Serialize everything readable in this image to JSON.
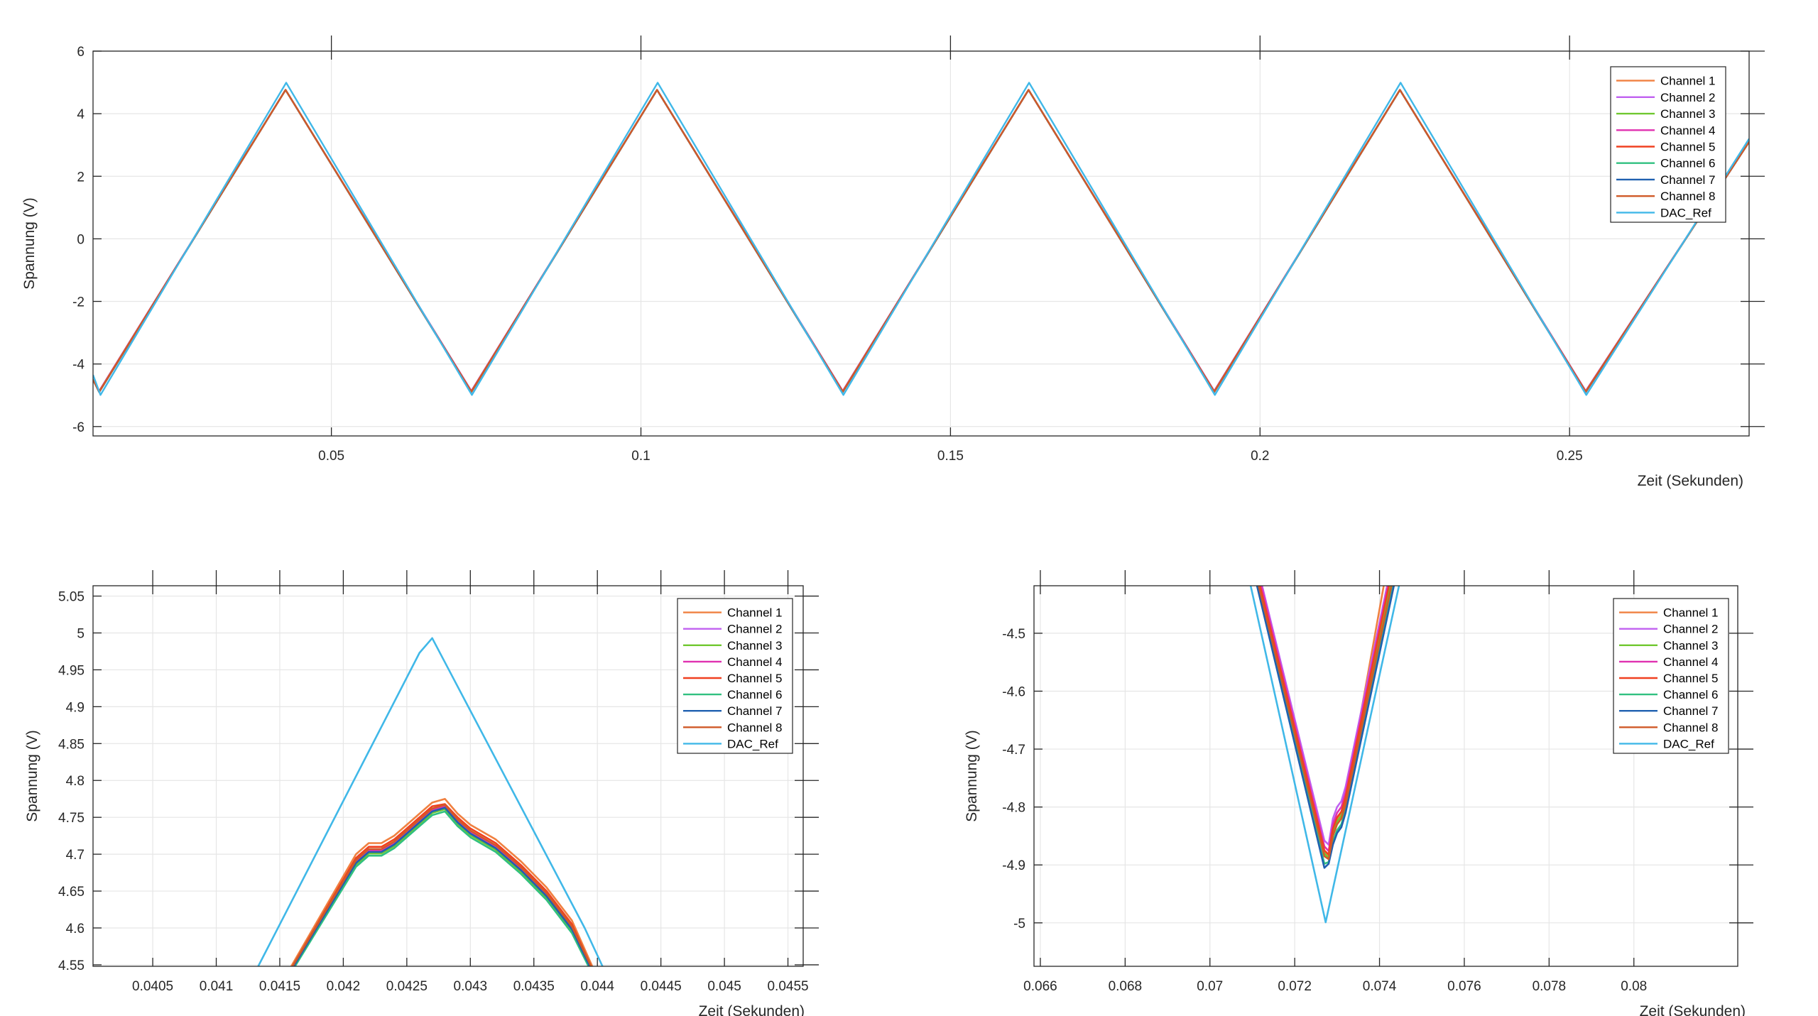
{
  "chart_data": [
    {
      "type": "line",
      "xlabel": "Zeit (Sekunden)",
      "ylabel": "Spannung (V)",
      "xlim": [
        0.0115,
        0.279
      ],
      "ylim": [
        -6.3,
        6.0
      ],
      "xticks": [
        0.05,
        0.1,
        0.15,
        0.2,
        0.25
      ],
      "xtick_labels": [
        "0.05",
        "0.1",
        "0.15",
        "0.2",
        "0.25"
      ],
      "yticks": [
        6,
        4,
        2,
        0,
        -2,
        -4,
        -6
      ],
      "ytick_labels": [
        "6",
        "4",
        "2",
        "0",
        "-2",
        "-4",
        "-6"
      ],
      "grid": true,
      "legend_position": "top-right",
      "series": [
        {
          "name": "Channel 1",
          "color": "#F08040",
          "x": [
            0.0115,
            0.0125,
            0.0426,
            0.0726,
            0.1026,
            0.1326,
            0.1626,
            0.1926,
            0.2226,
            0.2526,
            0.279
          ],
          "y": [
            -4.5,
            -4.89,
            4.76,
            -4.89,
            4.76,
            -4.89,
            4.76,
            -4.89,
            4.76,
            -4.89,
            3.1
          ]
        },
        {
          "name": "Channel 2",
          "color": "#C060F0",
          "x": [
            0.0115,
            0.0125,
            0.0426,
            0.0726,
            0.1026,
            0.1326,
            0.1626,
            0.1926,
            0.2226,
            0.2526,
            0.279
          ],
          "y": [
            -4.5,
            -4.86,
            4.76,
            -4.86,
            4.76,
            -4.86,
            4.76,
            -4.86,
            4.76,
            -4.86,
            3.1
          ]
        },
        {
          "name": "Channel 3",
          "color": "#70C830",
          "x": [
            0.0115,
            0.0125,
            0.0426,
            0.0726,
            0.1026,
            0.1326,
            0.1626,
            0.1926,
            0.2226,
            0.2526,
            0.279
          ],
          "y": [
            -4.5,
            -4.88,
            4.76,
            -4.88,
            4.76,
            -4.88,
            4.76,
            -4.88,
            4.76,
            -4.88,
            3.1
          ]
        },
        {
          "name": "Channel 4",
          "color": "#E030B0",
          "x": [
            0.0115,
            0.0125,
            0.0426,
            0.0726,
            0.1026,
            0.1326,
            0.1626,
            0.1926,
            0.2226,
            0.2526,
            0.279
          ],
          "y": [
            -4.5,
            -4.88,
            4.76,
            -4.88,
            4.76,
            -4.88,
            4.76,
            -4.88,
            4.76,
            -4.88,
            3.1
          ]
        },
        {
          "name": "Channel 5",
          "color": "#F04020",
          "x": [
            0.0115,
            0.0125,
            0.0426,
            0.0726,
            0.1026,
            0.1326,
            0.1626,
            0.1926,
            0.2226,
            0.2526,
            0.279
          ],
          "y": [
            -4.5,
            -4.88,
            4.76,
            -4.88,
            4.76,
            -4.88,
            4.76,
            -4.88,
            4.76,
            -4.88,
            3.1
          ]
        },
        {
          "name": "Channel 6",
          "color": "#30C080",
          "x": [
            0.0115,
            0.0125,
            0.0426,
            0.0726,
            0.1026,
            0.1326,
            0.1626,
            0.1926,
            0.2226,
            0.2526,
            0.279
          ],
          "y": [
            -4.5,
            -4.9,
            4.76,
            -4.9,
            4.76,
            -4.9,
            4.76,
            -4.9,
            4.76,
            -4.9,
            3.1
          ]
        },
        {
          "name": "Channel 7",
          "color": "#1F60B0",
          "x": [
            0.0115,
            0.0125,
            0.0426,
            0.0726,
            0.1026,
            0.1326,
            0.1626,
            0.1926,
            0.2226,
            0.2526,
            0.279
          ],
          "y": [
            -4.5,
            -4.9,
            4.76,
            -4.9,
            4.76,
            -4.9,
            4.76,
            -4.9,
            4.76,
            -4.9,
            3.1
          ]
        },
        {
          "name": "Channel 8",
          "color": "#D05A28",
          "x": [
            0.0115,
            0.0125,
            0.0426,
            0.0726,
            0.1026,
            0.1326,
            0.1626,
            0.1926,
            0.2226,
            0.2526,
            0.279
          ],
          "y": [
            -4.5,
            -4.89,
            4.76,
            -4.89,
            4.76,
            -4.89,
            4.76,
            -4.89,
            4.76,
            -4.89,
            3.1
          ]
        },
        {
          "name": "DAC_Ref",
          "color": "#40B8E8",
          "x": [
            0.0115,
            0.0127,
            0.0427,
            0.0727,
            0.1027,
            0.1327,
            0.1627,
            0.1927,
            0.2227,
            0.2527,
            0.279
          ],
          "y": [
            -4.35,
            -4.99,
            4.99,
            -4.99,
            4.99,
            -4.99,
            4.99,
            -4.99,
            4.99,
            -4.99,
            3.2
          ]
        }
      ]
    },
    {
      "type": "line",
      "xlabel": "Zeit (Sekunden)",
      "ylabel": "Spannung (V)",
      "xlim": [
        0.04003,
        0.04562
      ],
      "ylim": [
        4.548,
        5.064
      ],
      "xticks": [
        0.0405,
        0.041,
        0.0415,
        0.042,
        0.0425,
        0.043,
        0.0435,
        0.044,
        0.0445,
        0.045,
        0.0455
      ],
      "xtick_labels": [
        "0.0405",
        "0.041",
        "0.0415",
        "0.042",
        "0.0425",
        "0.043",
        "0.0435",
        "0.044",
        "0.0445",
        "0.045",
        "0.0455"
      ],
      "yticks": [
        5.05,
        5,
        4.95,
        4.9,
        4.85,
        4.8,
        4.75,
        4.7,
        4.65,
        4.6,
        4.55
      ],
      "ytick_labels": [
        "5.05",
        "5",
        "4.95",
        "4.9",
        "4.85",
        "4.8",
        "4.75",
        "4.7",
        "4.65",
        "4.6",
        "4.55"
      ],
      "grid": true,
      "legend_position": "top-right",
      "series": [
        {
          "name": "Channel 1",
          "color": "#F08040",
          "x": [
            0.04159,
            0.0421,
            0.0422,
            0.0423,
            0.0424,
            0.0425,
            0.0426,
            0.0427,
            0.0428,
            0.0429,
            0.043,
            0.0432,
            0.0434,
            0.0436,
            0.0438,
            0.04396
          ],
          "y": [
            4.548,
            4.7,
            4.715,
            4.715,
            4.725,
            4.74,
            4.755,
            4.77,
            4.775,
            4.755,
            4.74,
            4.72,
            4.69,
            4.655,
            4.61,
            4.548
          ]
        },
        {
          "name": "Channel 2",
          "color": "#C060F0",
          "x": [
            0.04161,
            0.0421,
            0.0422,
            0.0423,
            0.0424,
            0.0425,
            0.0426,
            0.0427,
            0.0428,
            0.0429,
            0.043,
            0.0432,
            0.0434,
            0.0436,
            0.0438,
            0.04394
          ],
          "y": [
            4.548,
            4.69,
            4.705,
            4.705,
            4.715,
            4.73,
            4.745,
            4.76,
            4.765,
            4.745,
            4.73,
            4.71,
            4.68,
            4.645,
            4.6,
            4.548
          ]
        },
        {
          "name": "Channel 3",
          "color": "#70C830",
          "x": [
            0.04161,
            0.0421,
            0.0422,
            0.0423,
            0.0424,
            0.0425,
            0.0426,
            0.0427,
            0.0428,
            0.0429,
            0.043,
            0.0432,
            0.0434,
            0.0436,
            0.0438,
            0.04394
          ],
          "y": [
            4.548,
            4.686,
            4.701,
            4.701,
            4.711,
            4.726,
            4.741,
            4.756,
            4.761,
            4.741,
            4.726,
            4.706,
            4.676,
            4.641,
            4.596,
            4.548
          ]
        },
        {
          "name": "Channel 4",
          "color": "#E030B0",
          "x": [
            0.04161,
            0.0421,
            0.0422,
            0.0423,
            0.0424,
            0.0425,
            0.0426,
            0.0427,
            0.0428,
            0.0429,
            0.043,
            0.0432,
            0.0434,
            0.0436,
            0.0438,
            0.04394
          ],
          "y": [
            4.548,
            4.69,
            4.705,
            4.705,
            4.715,
            4.73,
            4.745,
            4.76,
            4.765,
            4.745,
            4.73,
            4.71,
            4.68,
            4.645,
            4.6,
            4.548
          ]
        },
        {
          "name": "Channel 5",
          "color": "#F04020",
          "x": [
            0.0416,
            0.0421,
            0.0422,
            0.0423,
            0.0424,
            0.0425,
            0.0426,
            0.0427,
            0.0428,
            0.0429,
            0.043,
            0.0432,
            0.0434,
            0.0436,
            0.0438,
            0.04395
          ],
          "y": [
            4.548,
            4.695,
            4.71,
            4.71,
            4.72,
            4.735,
            4.75,
            4.765,
            4.768,
            4.75,
            4.735,
            4.715,
            4.685,
            4.65,
            4.605,
            4.548
          ]
        },
        {
          "name": "Channel 6",
          "color": "#30C080",
          "x": [
            0.04162,
            0.0421,
            0.0422,
            0.0423,
            0.0424,
            0.0425,
            0.0426,
            0.0427,
            0.0428,
            0.0429,
            0.043,
            0.0432,
            0.0434,
            0.0436,
            0.0438,
            0.04393
          ],
          "y": [
            4.548,
            4.683,
            4.698,
            4.698,
            4.708,
            4.723,
            4.738,
            4.753,
            4.758,
            4.738,
            4.723,
            4.703,
            4.673,
            4.638,
            4.593,
            4.548
          ]
        },
        {
          "name": "Channel 7",
          "color": "#1F60B0",
          "x": [
            0.04161,
            0.0421,
            0.0422,
            0.0423,
            0.0424,
            0.0425,
            0.0426,
            0.0427,
            0.0428,
            0.0429,
            0.043,
            0.0432,
            0.0434,
            0.0436,
            0.0438,
            0.04394
          ],
          "y": [
            4.548,
            4.688,
            4.703,
            4.703,
            4.713,
            4.728,
            4.743,
            4.758,
            4.763,
            4.743,
            4.728,
            4.708,
            4.678,
            4.643,
            4.598,
            4.548
          ]
        },
        {
          "name": "Channel 8",
          "color": "#D05A28",
          "x": [
            0.0416,
            0.0421,
            0.0422,
            0.0423,
            0.0424,
            0.0425,
            0.0426,
            0.0427,
            0.0428,
            0.0429,
            0.043,
            0.0432,
            0.0434,
            0.0436,
            0.0438,
            0.04395
          ],
          "y": [
            4.548,
            4.692,
            4.707,
            4.707,
            4.717,
            4.732,
            4.747,
            4.762,
            4.767,
            4.747,
            4.732,
            4.712,
            4.682,
            4.647,
            4.602,
            4.548
          ]
        },
        {
          "name": "DAC_Ref",
          "color": "#40B8E8",
          "x": [
            0.04133,
            0.0426,
            0.0427,
            0.0439,
            0.04404
          ],
          "y": [
            4.548,
            4.973,
            4.993,
            4.6,
            4.548
          ]
        }
      ]
    },
    {
      "type": "line",
      "xlabel": "Zeit (Sekunden)",
      "ylabel": "Spannung (V)",
      "xlim": [
        0.06585,
        0.08245
      ],
      "ylim": [
        -5.075,
        -4.418
      ],
      "xticks": [
        0.066,
        0.068,
        0.07,
        0.072,
        0.074,
        0.076,
        0.078,
        0.08
      ],
      "xtick_labels": [
        "0.066",
        "0.068",
        "0.07",
        "0.072",
        "0.074",
        "0.076",
        "0.078",
        "0.08"
      ],
      "yticks": [
        -4.5,
        -4.6,
        -4.7,
        -4.8,
        -4.9,
        -5
      ],
      "ytick_labels": [
        "-4.5",
        "-4.6",
        "-4.7",
        "-4.8",
        "-4.9",
        "-5"
      ],
      "grid": true,
      "legend_position": "top-right",
      "series": [
        {
          "name": "Channel 1",
          "color": "#F08040",
          "x": [
            0.07113,
            0.0727,
            0.0728,
            0.0729,
            0.073,
            0.0731,
            0.0732,
            0.0741
          ],
          "y": [
            -4.418,
            -4.878,
            -4.885,
            -4.84,
            -4.82,
            -4.81,
            -4.785,
            -4.418
          ]
        },
        {
          "name": "Channel 2",
          "color": "#C060F0",
          "x": [
            0.07123,
            0.0727,
            0.0728,
            0.0729,
            0.073,
            0.0731,
            0.0732,
            0.07418
          ],
          "y": [
            -4.418,
            -4.858,
            -4.865,
            -4.82,
            -4.8,
            -4.79,
            -4.765,
            -4.418
          ]
        },
        {
          "name": "Channel 3",
          "color": "#70C830",
          "x": [
            0.07116,
            0.0727,
            0.0728,
            0.0729,
            0.073,
            0.0731,
            0.0732,
            0.07426
          ],
          "y": [
            -4.418,
            -4.88,
            -4.888,
            -4.845,
            -4.825,
            -4.815,
            -4.79,
            -4.418
          ]
        },
        {
          "name": "Channel 4",
          "color": "#E030B0",
          "x": [
            0.07121,
            0.0727,
            0.0728,
            0.0729,
            0.073,
            0.0731,
            0.0732,
            0.0742
          ],
          "y": [
            -4.418,
            -4.868,
            -4.876,
            -4.83,
            -4.81,
            -4.8,
            -4.775,
            -4.418
          ]
        },
        {
          "name": "Channel 5",
          "color": "#F04020",
          "x": [
            0.07118,
            0.0727,
            0.0728,
            0.0729,
            0.073,
            0.0731,
            0.0732,
            0.07422
          ],
          "y": [
            -4.418,
            -4.875,
            -4.882,
            -4.838,
            -4.818,
            -4.808,
            -4.783,
            -4.418
          ]
        },
        {
          "name": "Channel 6",
          "color": "#30C080",
          "x": [
            0.07112,
            0.0727,
            0.0728,
            0.0729,
            0.073,
            0.0731,
            0.0732,
            0.07432
          ],
          "y": [
            -4.418,
            -4.898,
            -4.895,
            -4.86,
            -4.84,
            -4.83,
            -4.805,
            -4.418
          ]
        },
        {
          "name": "Channel 7",
          "color": "#1F60B0",
          "x": [
            0.07111,
            0.0727,
            0.0728,
            0.0729,
            0.073,
            0.0731,
            0.0732,
            0.07434
          ],
          "y": [
            -4.418,
            -4.905,
            -4.898,
            -4.865,
            -4.845,
            -4.835,
            -4.81,
            -4.418
          ]
        },
        {
          "name": "Channel 8",
          "color": "#D05A28",
          "x": [
            0.07115,
            0.0727,
            0.0728,
            0.0729,
            0.073,
            0.0731,
            0.0732,
            0.07428
          ],
          "y": [
            -4.418,
            -4.885,
            -4.89,
            -4.85,
            -4.83,
            -4.82,
            -4.795,
            -4.418
          ]
        },
        {
          "name": "DAC_Ref",
          "color": "#40B8E8",
          "x": [
            0.07096,
            0.07273,
            0.07446
          ],
          "y": [
            -4.418,
            -4.999,
            -4.418
          ]
        }
      ]
    }
  ]
}
